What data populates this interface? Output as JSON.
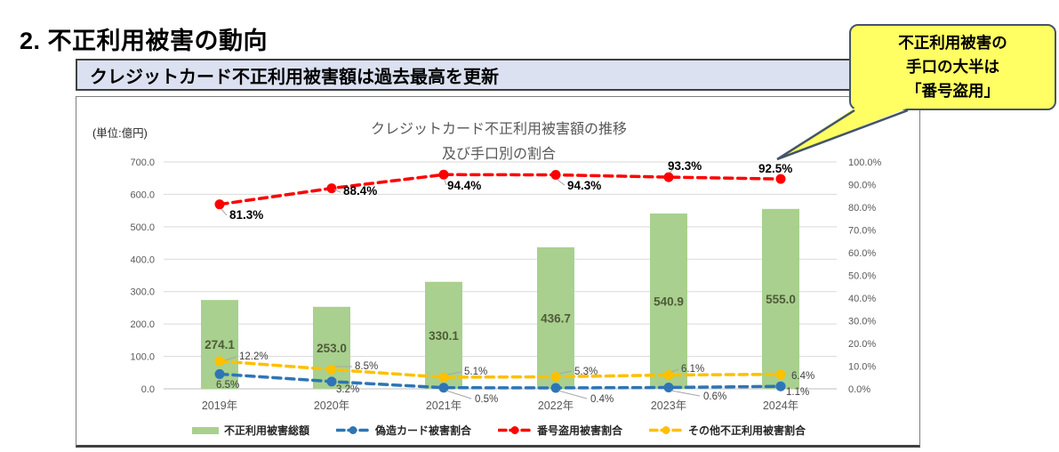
{
  "page": {
    "title": "2. 不正利用被害の動向"
  },
  "banner": {
    "text": "クレジットカード不正利用被害額は過去最高を更新"
  },
  "callout": {
    "lines": [
      "不正利用被害の",
      "手口の大半は",
      "「番号盗用」"
    ]
  },
  "chart": {
    "unit_label": "(単位:億円)",
    "title_line1": "クレジットカード不正利用被害額の推移",
    "title_line2": "及び手口別の割合"
  },
  "chart_data": {
    "type": "bar",
    "subtype": "bar-line-combo",
    "title": "クレジットカード不正利用被害額の推移 及び手口別の割合",
    "categories": [
      "2019年",
      "2020年",
      "2021年",
      "2022年",
      "2023年",
      "2024年"
    ],
    "bar_series": {
      "name": "不正利用被害総額",
      "values": [
        274.1,
        253.0,
        330.1,
        436.7,
        540.9,
        555.0
      ],
      "color": "#a9d08e",
      "axis": "left",
      "label_color": "#4e5b38"
    },
    "line_series": [
      {
        "name": "偽造カード被害割合",
        "values": [
          6.5,
          3.2,
          0.5,
          0.4,
          0.6,
          1.1
        ],
        "color": "#2e75b6",
        "axis": "right"
      },
      {
        "name": "番号盗用被害割合",
        "values": [
          81.3,
          88.4,
          94.4,
          94.3,
          93.3,
          92.5
        ],
        "color": "#ff0000",
        "axis": "right"
      },
      {
        "name": "その他不正利用被害割合",
        "values": [
          12.2,
          8.5,
          5.1,
          5.3,
          6.1,
          6.4
        ],
        "color": "#ffc000",
        "axis": "right"
      }
    ],
    "left_axis": {
      "label": "(単位:億円)",
      "min": 0,
      "max": 700,
      "step": 100,
      "decimals": 1
    },
    "right_axis": {
      "min": 0,
      "max": 100,
      "step": 10,
      "decimals": 1,
      "suffix": "%"
    },
    "grid": "horizontal",
    "legend_position": "bottom",
    "legend": [
      {
        "type": "bar",
        "label": "不正利用被害総額",
        "color": "#a9d08e"
      },
      {
        "type": "line",
        "label": "偽造カード被害割合",
        "color": "#2e75b6"
      },
      {
        "type": "line",
        "label": "番号盗用被害割合",
        "color": "#ff0000"
      },
      {
        "type": "line",
        "label": "その他不正利用被害割合",
        "color": "#ffc000"
      }
    ],
    "colors": {
      "grid": "#d9d9d9",
      "axis_text": "#595959",
      "small_label": "#404040",
      "leader": "#a6a6a6"
    }
  }
}
